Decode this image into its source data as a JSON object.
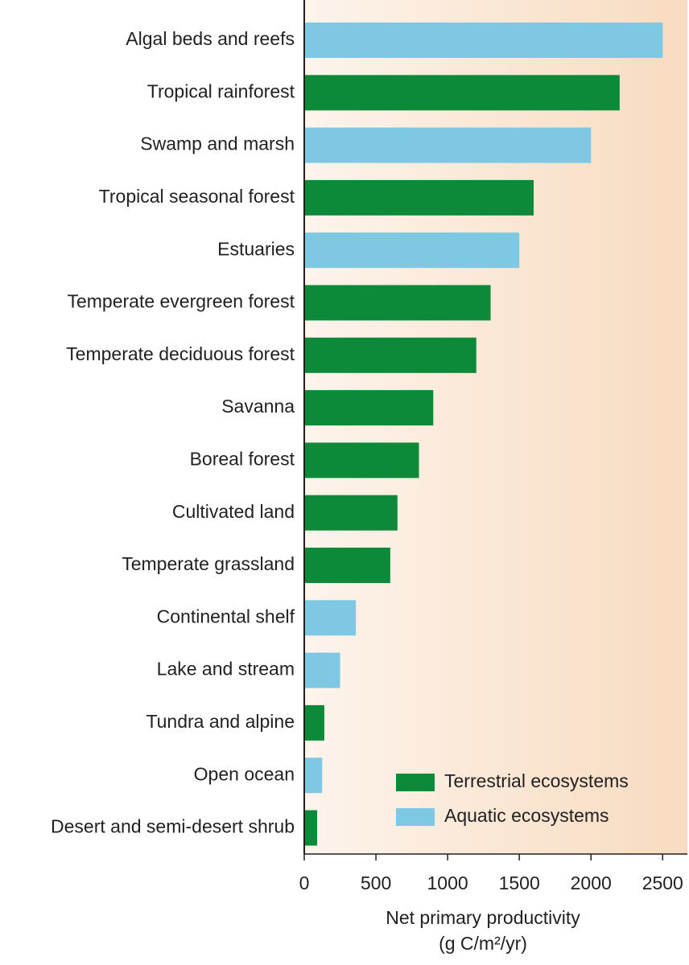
{
  "chart_data": {
    "type": "barh",
    "categories": [
      "Algal beds and reefs",
      "Tropical rainforest",
      "Swamp and marsh",
      "Tropical seasonal forest",
      "Estuaries",
      "Temperate evergreen forest",
      "Temperate deciduous forest",
      "Savanna",
      "Boreal forest",
      "Cultivated land",
      "Temperate grassland",
      "Continental shelf",
      "Lake and stream",
      "Tundra and alpine",
      "Open ocean",
      "Desert and semi-desert shrub"
    ],
    "series": [
      {
        "name": "Terrestrial ecosystems",
        "color": "#0c8a3a",
        "values": [
          null,
          2200,
          null,
          1600,
          null,
          1300,
          1200,
          900,
          800,
          650,
          600,
          null,
          null,
          140,
          null,
          90
        ]
      },
      {
        "name": "Aquatic ecosystems",
        "color": "#7ec8e3",
        "values": [
          2500,
          null,
          2000,
          null,
          1500,
          null,
          null,
          null,
          null,
          null,
          null,
          360,
          250,
          null,
          125,
          null
        ]
      }
    ],
    "xlim": [
      0,
      2650
    ],
    "xticks": [
      0,
      500,
      1000,
      1500,
      2000,
      2500
    ],
    "xlabel": [
      "Net primary productivity",
      "(g C/m²/yr)"
    ]
  }
}
